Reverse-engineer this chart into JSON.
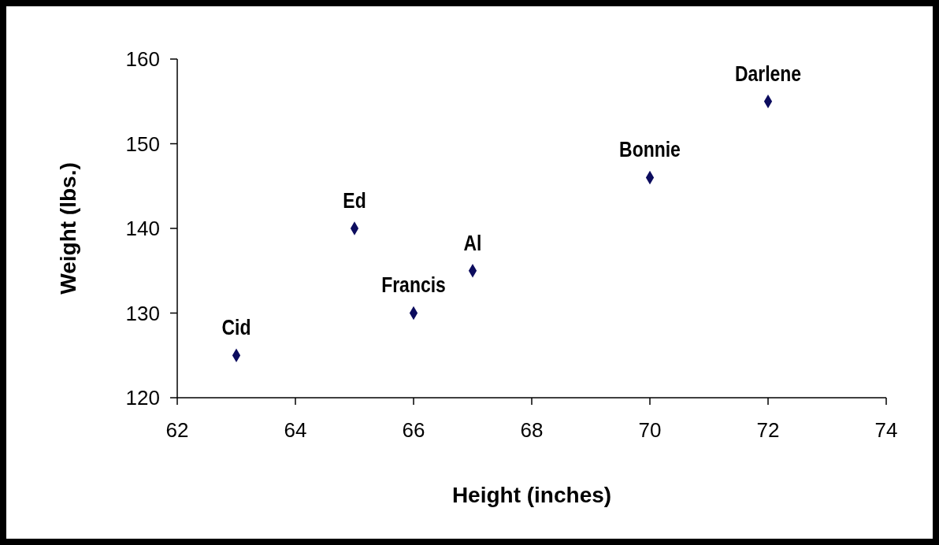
{
  "chart_data": {
    "type": "scatter",
    "xlabel": "Height (inches)",
    "ylabel": "Weight (lbs.)",
    "x": [
      63,
      65,
      66,
      67,
      70,
      72
    ],
    "series": [
      {
        "color": "#0c0c5e",
        "values": [
          125,
          140,
          130,
          135,
          146,
          155
        ]
      }
    ],
    "xlim": [
      62,
      74
    ],
    "xticks": [
      62,
      64,
      66,
      68,
      70,
      72,
      74
    ],
    "ylim": [
      120,
      160
    ],
    "yticks": [
      120,
      130,
      140,
      150,
      160
    ],
    "marker": "diamond",
    "annotations": [
      {
        "text": "Cid",
        "x": 63,
        "y": 125
      },
      {
        "text": "Ed",
        "x": 65,
        "y": 140
      },
      {
        "text": "Francis",
        "x": 66,
        "y": 130
      },
      {
        "text": "Al",
        "x": 67,
        "y": 135
      },
      {
        "text": "Bonnie",
        "x": 70,
        "y": 146
      },
      {
        "text": "Darlene",
        "x": 72,
        "y": 155
      }
    ]
  }
}
